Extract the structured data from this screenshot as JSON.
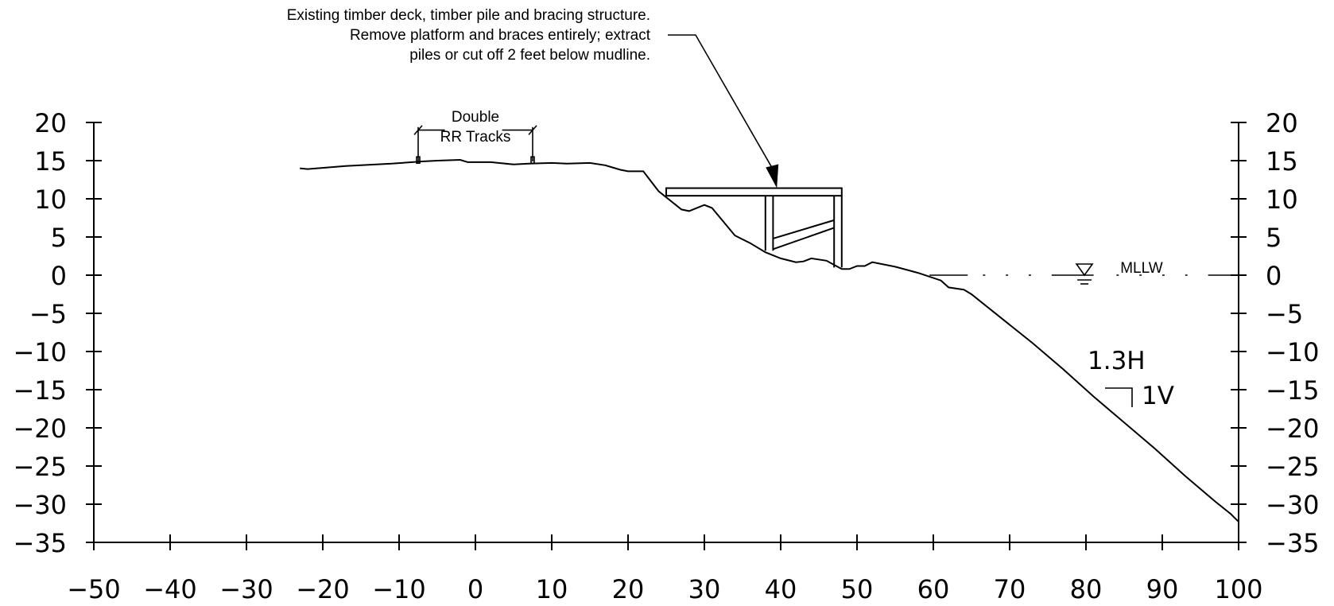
{
  "chart_data": {
    "type": "line",
    "title": "",
    "xlabel": "",
    "ylabel": "",
    "xlim": [
      -50,
      100
    ],
    "ylim": [
      -35,
      20
    ],
    "x_ticks": [
      -50,
      -40,
      -30,
      -20,
      -10,
      0,
      10,
      20,
      30,
      40,
      50,
      60,
      70,
      80,
      90,
      100
    ],
    "y_ticks": [
      20,
      15,
      10,
      5,
      0,
      -5,
      -10,
      -15,
      -20,
      -25,
      -30,
      -35
    ],
    "x_tick_labels": [
      "−50",
      "−40",
      "−30",
      "−20",
      "−10",
      "0",
      "10",
      "20",
      "30",
      "40",
      "50",
      "60",
      "70",
      "80",
      "90",
      "100"
    ],
    "y_tick_labels": [
      "20",
      "15",
      "10",
      "5",
      "0",
      "−5",
      "−10",
      "−15",
      "−20",
      "−25",
      "−30",
      "−35"
    ],
    "series": [
      {
        "x": [
          -23,
          -22,
          -17,
          -11,
          -7,
          -5,
          -2,
          -1,
          2,
          5,
          7,
          10,
          12,
          15,
          17,
          19,
          20,
          22,
          24,
          27,
          28,
          30,
          31,
          32,
          34,
          36,
          38,
          40,
          42,
          43,
          44,
          46,
          48,
          49,
          50,
          51,
          52,
          55,
          58,
          61,
          62,
          64,
          65,
          69,
          73,
          77,
          81,
          85,
          89,
          93,
          97,
          99,
          100
        ],
        "y": [
          14,
          13.9,
          14.3,
          14.6,
          14.9,
          15,
          15.1,
          14.8,
          14.8,
          14.5,
          14.6,
          14.7,
          14.6,
          14.7,
          14.4,
          13.8,
          13.6,
          13.6,
          11,
          8.6,
          8.4,
          9.2,
          8.8,
          7.6,
          5.2,
          4.2,
          3,
          2.2,
          1.7,
          1.8,
          2.2,
          1.9,
          0.8,
          0.8,
          1.2,
          1.2,
          1.7,
          1.1,
          0.3,
          -0.7,
          -1.6,
          -1.9,
          -2.5,
          -5.7,
          -8.9,
          -12.3,
          -15.9,
          -19.3,
          -22.7,
          -26.3,
          -29.7,
          -31.3,
          -32.3
        ]
      }
    ],
    "water_level_elevation": 0,
    "structure": {
      "deck_x": [
        25,
        48
      ],
      "deck_elevation": [
        10.4,
        11.4
      ],
      "pile_x": [
        38,
        39,
        47,
        48
      ],
      "brace_elevations": [
        [
          3.4,
          6.2
        ],
        [
          4.8,
          7.2
        ]
      ],
      "pile_tip_elevation": 1
    },
    "rr_track_x": [
      -7.5,
      7.5
    ],
    "slope_ratio": {
      "horizontal": 1.3,
      "vertical": 1
    }
  },
  "annotations": {
    "structure_note_lines": [
      "Existing timber deck, timber pile and bracing structure.",
      "Remove platform and braces entirely; extract",
      "piles or cut off 2 feet below mudline."
    ],
    "rr_label_lines": [
      "Double",
      "RR Tracks"
    ],
    "water_label": "MLLW",
    "slope_h": "1.3H",
    "slope_v": "1V"
  }
}
